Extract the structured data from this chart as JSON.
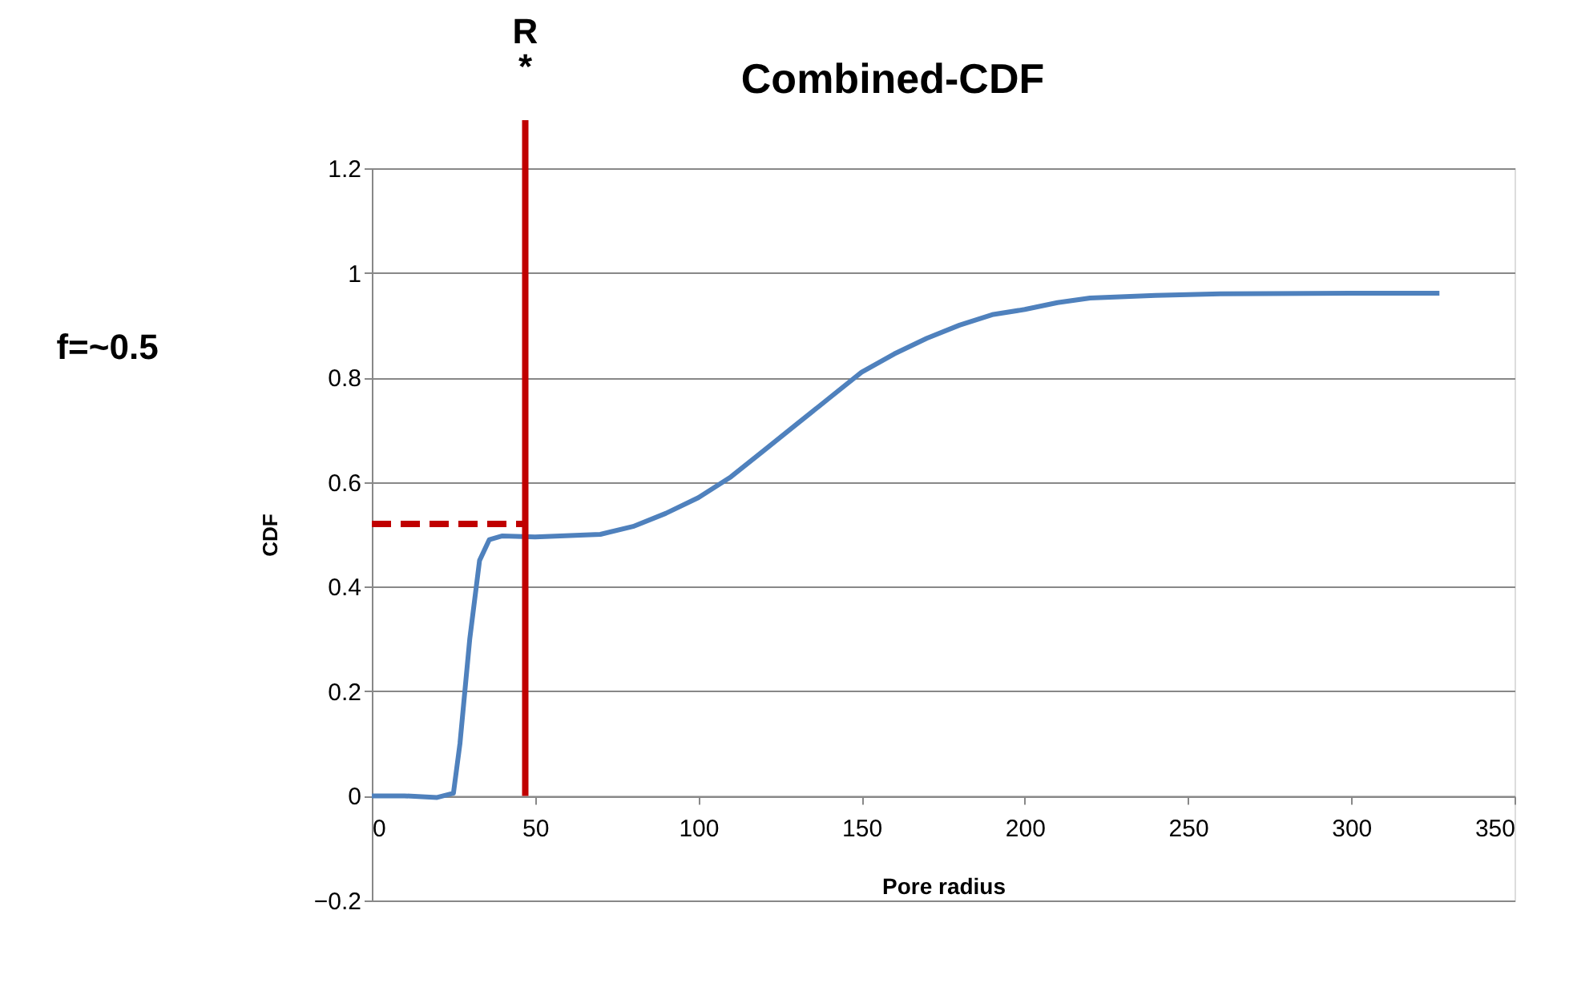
{
  "chart_data": {
    "type": "line",
    "title": "Combined-CDF",
    "xlabel": "Pore radius",
    "ylabel": "CDF",
    "annotations": [
      "f=~0.5",
      "R\n*"
    ],
    "series": [
      {
        "color": "#4f81bd",
        "x": [
          0,
          10,
          20,
          25,
          27,
          30,
          33,
          36,
          40,
          50,
          70,
          80,
          90,
          100,
          110,
          120,
          130,
          140,
          150,
          160,
          170,
          180,
          190,
          200,
          210,
          220,
          240,
          260,
          300,
          327
        ],
        "values": [
          0,
          0,
          -0.003,
          0.005,
          0.1,
          0.3,
          0.45,
          0.49,
          0.497,
          0.495,
          0.5,
          0.515,
          0.54,
          0.57,
          0.61,
          0.66,
          0.71,
          0.76,
          0.81,
          0.845,
          0.875,
          0.9,
          0.92,
          0.93,
          0.943,
          0.952,
          0.957,
          0.96,
          0.961,
          0.961
        ]
      },
      {
        "color": "#c00000",
        "line_style": "dashed",
        "x": [
          0,
          47
        ],
        "values": [
          0.52,
          0.52
        ]
      }
    ],
    "ref_lines": [
      {
        "axis": "x",
        "value": 47,
        "color": "#c00000"
      }
    ],
    "xlim": [
      0,
      350
    ],
    "xticks": [
      0,
      50,
      100,
      150,
      200,
      250,
      300,
      350
    ],
    "ylim": [
      -0.2,
      1.2
    ],
    "yticks": [
      -0.2,
      0,
      0.2,
      0.4,
      0.6,
      0.8,
      1,
      1.2
    ],
    "grid": "y",
    "marker": "none"
  }
}
